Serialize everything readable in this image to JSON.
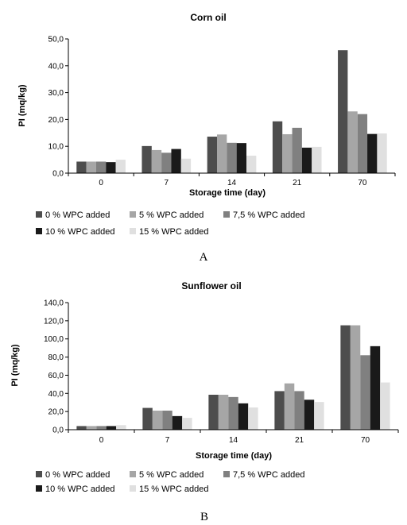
{
  "series_colors": [
    "#4d4d4d",
    "#a6a6a6",
    "#808080",
    "#1a1a1a",
    "#e0e0e0"
  ],
  "chart_data": [
    {
      "type": "bar",
      "panel_label": "A",
      "title": "Corn oil",
      "xlabel": "Storage time (day)",
      "ylabel": "PI (mq/kg)",
      "categories": [
        "0",
        "7",
        "14",
        "21",
        "70"
      ],
      "ylim": [
        0,
        50
      ],
      "yticks": [
        "0,0",
        "10,0",
        "20,0",
        "30,0",
        "40,0",
        "50,0"
      ],
      "legend_position": "bottom",
      "grid": false,
      "series": [
        {
          "name": "0 % WPC added",
          "values": [
            4.3,
            10.1,
            13.6,
            19.3,
            45.8
          ]
        },
        {
          "name": "5 % WPC added",
          "values": [
            4.3,
            8.6,
            14.4,
            14.5,
            23.0
          ]
        },
        {
          "name": "7,5 % WPC added",
          "values": [
            4.3,
            7.6,
            11.3,
            16.9,
            22.0
          ]
        },
        {
          "name": "10 % WPC added",
          "values": [
            4.1,
            9.0,
            11.2,
            9.5,
            14.6
          ]
        },
        {
          "name": "15 % WPC added",
          "values": [
            5.0,
            5.4,
            6.5,
            9.8,
            14.8
          ]
        }
      ]
    },
    {
      "type": "bar",
      "panel_label": "B",
      "title": "Sunflower oil",
      "xlabel": "Storage time (day)",
      "ylabel": "PI (mq/kg)",
      "categories": [
        "0",
        "7",
        "14",
        "21",
        "70"
      ],
      "ylim": [
        0,
        140
      ],
      "yticks": [
        "0,0",
        "20,0",
        "40,0",
        "60,0",
        "80,0",
        "100,0",
        "120,0",
        "140,0"
      ],
      "legend_position": "bottom",
      "grid": false,
      "series": [
        {
          "name": "0 % WPC added",
          "values": [
            4.0,
            24.0,
            38.5,
            42.5,
            115.0
          ]
        },
        {
          "name": "5 % WPC added",
          "values": [
            4.0,
            21.0,
            38.5,
            51.0,
            115.0
          ]
        },
        {
          "name": "7,5 % WPC added",
          "values": [
            4.0,
            21.0,
            36.0,
            42.5,
            82.0
          ]
        },
        {
          "name": "10 % WPC added",
          "values": [
            4.0,
            15.0,
            29.0,
            33.0,
            92.0
          ]
        },
        {
          "name": "15 % WPC added",
          "values": [
            5.0,
            13.0,
            24.5,
            30.5,
            52.0
          ]
        }
      ]
    }
  ]
}
